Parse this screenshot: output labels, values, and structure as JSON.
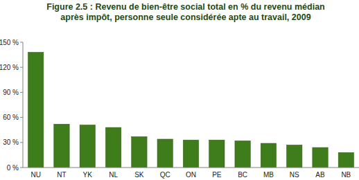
{
  "chart_data": {
    "type": "bar",
    "title": "Figure 2.5 : Revenu de bien-être social total en % du revenu médian\naprès impôt, personne seule considérée apte au travail, 2009",
    "categories": [
      "NU",
      "NT",
      "YK",
      "NL",
      "SK",
      "QC",
      "ON",
      "PE",
      "BC",
      "MB",
      "NS",
      "AB",
      "NB"
    ],
    "values": [
      138,
      52,
      51,
      48,
      37,
      34,
      33,
      33,
      32,
      29,
      27,
      24,
      18
    ],
    "color": "#3f7d1c",
    "ylim": [
      0,
      150
    ],
    "yticks": [
      {
        "value": 0,
        "label": "0 %"
      },
      {
        "value": 30,
        "label": "30 %"
      },
      {
        "value": 60,
        "label": "60 %"
      },
      {
        "value": 90,
        "label": "90 %"
      },
      {
        "value": 120,
        "label": "120 %"
      },
      {
        "value": 150,
        "label": "150 %"
      }
    ],
    "grid": false
  }
}
